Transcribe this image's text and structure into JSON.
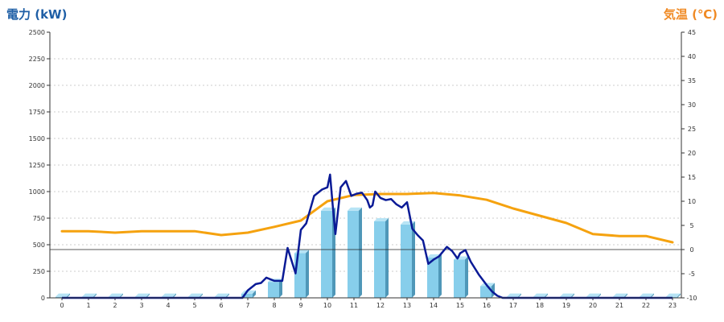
{
  "chart_data": {
    "type": "bar+line",
    "y_left_label": "電力 (kW)",
    "y_right_label": "気温 (℃)",
    "x_ticks": [
      "0",
      "1",
      "2",
      "3",
      "4",
      "5",
      "6",
      "7",
      "8",
      "9",
      "10",
      "11",
      "12",
      "13",
      "14",
      "15",
      "16",
      "17",
      "18",
      "19",
      "20",
      "21",
      "22",
      "23"
    ],
    "y_left_ticks": [
      "0",
      "250",
      "500",
      "750",
      "1000",
      "1250",
      "1500",
      "1750",
      "2000",
      "2250",
      "2500"
    ],
    "y_right_ticks": [
      "-10",
      "-5",
      "0",
      "5",
      "10",
      "15",
      "20",
      "25",
      "30",
      "35",
      "40",
      "45"
    ],
    "y_left_range": [
      0,
      2500
    ],
    "y_right_range": [
      -10,
      45
    ],
    "grid": "horizontal dotted",
    "reference_line_right": 0,
    "colors": {
      "bar_front": "#87ceeb",
      "bar_top": "#b7e4f5",
      "bar_side": "#4f97b8",
      "power_line": "#0a1a96",
      "temp_line": "#f5a20f",
      "left_label": "#1f5fa6",
      "right_label": "#f08a24"
    },
    "hourly_bars": {
      "x": [
        0,
        1,
        2,
        3,
        4,
        5,
        6,
        7,
        8,
        9,
        10,
        11,
        12,
        13,
        14,
        15,
        16,
        17,
        18,
        19,
        20,
        21,
        22,
        23
      ],
      "values": [
        10,
        10,
        10,
        10,
        10,
        10,
        10,
        40,
        150,
        420,
        820,
        820,
        720,
        690,
        380,
        360,
        110,
        10,
        10,
        10,
        10,
        10,
        10,
        10
      ]
    },
    "power_series": {
      "x": [
        0,
        1,
        2,
        3,
        4,
        5,
        6,
        6.8,
        7,
        7.3,
        7.5,
        7.7,
        8,
        8.3,
        8.5,
        8.8,
        9,
        9.2,
        9.5,
        9.8,
        10,
        10.1,
        10.2,
        10.3,
        10.5,
        10.7,
        10.9,
        11.1,
        11.3,
        11.5,
        11.6,
        11.7,
        11.8,
        12,
        12.2,
        12.4,
        12.6,
        12.8,
        13,
        13.2,
        13.4,
        13.6,
        13.8,
        14,
        14.2,
        14.5,
        14.7,
        14.9,
        15,
        15.2,
        15.4,
        15.7,
        16,
        16.2,
        16.4,
        16.6,
        17,
        18,
        19,
        20,
        21,
        22,
        23
      ],
      "values": [
        0,
        0,
        0,
        0,
        0,
        0,
        0,
        0,
        70,
        130,
        140,
        190,
        160,
        160,
        470,
        230,
        640,
        700,
        960,
        1020,
        1040,
        1160,
        870,
        600,
        1040,
        1100,
        960,
        980,
        990,
        920,
        850,
        870,
        1000,
        940,
        920,
        930,
        880,
        850,
        900,
        650,
        590,
        540,
        320,
        360,
        390,
        480,
        440,
        370,
        420,
        450,
        340,
        220,
        120,
        60,
        20,
        0,
        0,
        0,
        0,
        0,
        0,
        0,
        0
      ]
    },
    "temp_series": {
      "x": [
        0,
        1,
        2,
        3,
        4,
        5,
        6,
        7,
        8,
        9,
        10,
        11,
        12,
        13,
        14,
        15,
        16,
        17,
        18,
        19,
        20,
        21,
        22,
        23
      ],
      "values": [
        3.8,
        3.8,
        3.5,
        3.8,
        3.8,
        3.8,
        3.0,
        3.5,
        4.7,
        6.0,
        10.0,
        11.3,
        11.5,
        11.5,
        11.7,
        11.2,
        10.3,
        8.5,
        7.0,
        5.5,
        3.2,
        2.8,
        2.8,
        1.5
      ]
    }
  }
}
